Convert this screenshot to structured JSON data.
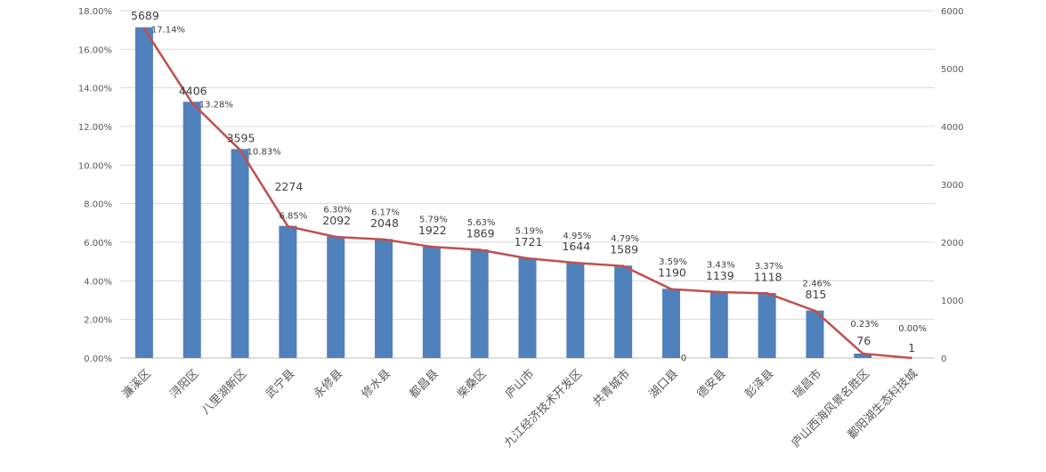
{
  "chart_data": {
    "type": "bar",
    "categories": [
      "濂溪区",
      "浔阳区",
      "八里湖新区",
      "武宁县",
      "永修县",
      "修水县",
      "都昌县",
      "柴桑区",
      "庐山市",
      "九江经济技术开发区",
      "共青城市",
      "湖口县",
      "德安县",
      "彭泽县",
      "瑞昌市",
      "庐山西海风景名胜区",
      "鄱阳湖生态科技城"
    ],
    "series": [
      {
        "kind": "bar",
        "axis": "left",
        "values": [
          17.14,
          13.28,
          10.83,
          6.85,
          6.3,
          6.17,
          5.79,
          5.63,
          5.19,
          4.95,
          4.79,
          3.59,
          3.43,
          3.37,
          2.46,
          0.23,
          0.0
        ],
        "labels": [
          "17.14%",
          "13.28%",
          "10.83%",
          "6.85%",
          "6.30%",
          "6.17%",
          "5.79%",
          "5.63%",
          "5.19%",
          "4.95%",
          "4.79%",
          "3.59%",
          "3.43%",
          "3.37%",
          "2.46%",
          "0.23%",
          "0.00%"
        ],
        "color": "#4f81bd"
      },
      {
        "kind": "line",
        "axis": "right",
        "values": [
          5689,
          4406,
          3595,
          2274,
          2092,
          2048,
          1922,
          1869,
          1721,
          1644,
          1589,
          1190,
          1139,
          1118,
          815,
          76,
          1
        ],
        "labels": [
          "5689",
          "4406",
          "3595",
          "2274",
          "2092",
          "2048",
          "1922",
          "1869",
          "1721",
          "1644",
          "1589",
          "1190",
          "1139",
          "1118",
          "815",
          "76",
          "1"
        ],
        "color": "#c0504d"
      }
    ],
    "extra_label": "0",
    "y_left": {
      "ylim": [
        0,
        18
      ],
      "ticks": [
        "0.00%",
        "2.00%",
        "4.00%",
        "6.00%",
        "8.00%",
        "10.00%",
        "12.00%",
        "14.00%",
        "16.00%",
        "18.00%"
      ]
    },
    "y_right": {
      "ylim": [
        0,
        6000
      ],
      "ticks": [
        "0",
        "1000",
        "2000",
        "3000",
        "4000",
        "5000",
        "6000"
      ]
    },
    "grid": true,
    "legend": false,
    "colors": {
      "bar": "#4f81bd",
      "line": "#c0504d",
      "grid": "#d9d9d9",
      "text": "#595959"
    }
  }
}
